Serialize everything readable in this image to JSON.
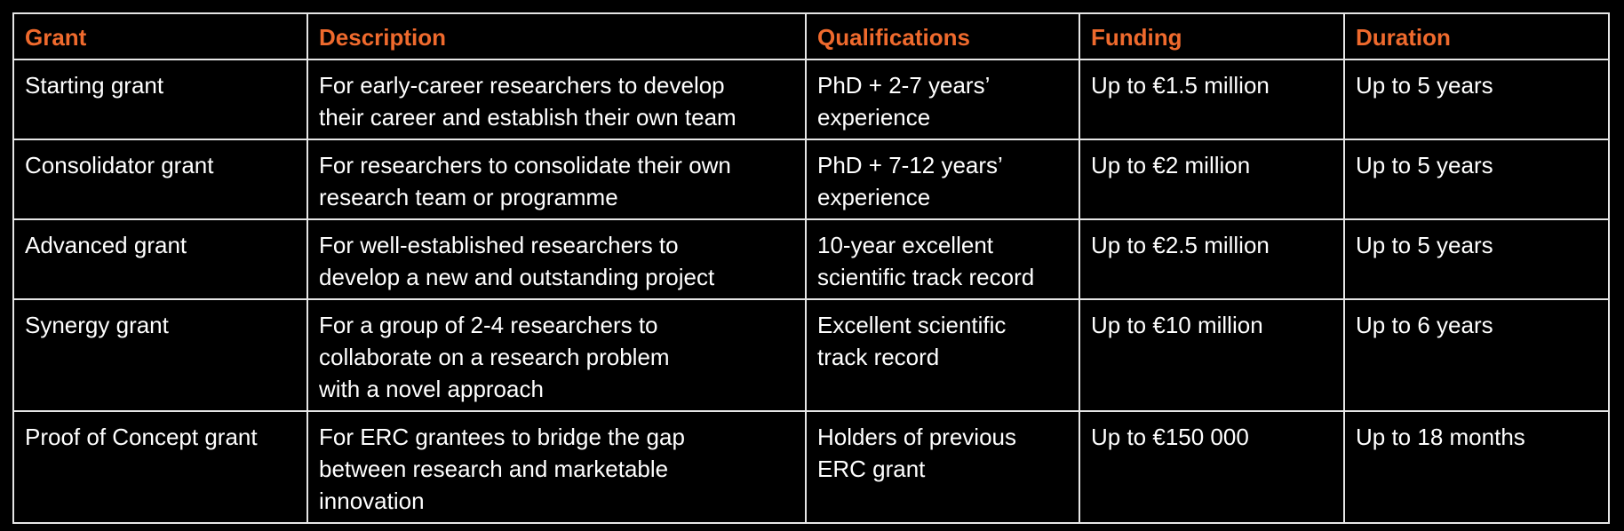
{
  "columns": [
    "Grant",
    "Description",
    "Qualifications",
    "Funding",
    "Duration"
  ],
  "colors": {
    "background": "#000000",
    "header_text": "#ef6a2d",
    "body_text": "#ffffff",
    "border": "#e6e6e6"
  },
  "rows": [
    {
      "grant": "Starting grant",
      "description": "For early-career researchers to develop\ntheir career and establish their own team",
      "qualifications": "PhD + 2-7 years’\nexperience",
      "funding": "Up to €1.5 million",
      "duration": "Up to 5 years"
    },
    {
      "grant": "Consolidator grant",
      "description": "For researchers to consolidate their own\nresearch team or programme",
      "qualifications": "PhD + 7-12 years’\nexperience",
      "funding": "Up to €2 million",
      "duration": "Up to 5 years"
    },
    {
      "grant": "Advanced grant",
      "description": "For well-established researchers to\ndevelop a new and outstanding project",
      "qualifications": "10-year excellent\nscientific track record",
      "funding": "Up to €2.5 million",
      "duration": "Up to 5 years"
    },
    {
      "grant": "Synergy grant",
      "description": "For a group of 2-4 researchers to\ncollaborate on a research problem\nwith a novel approach",
      "qualifications": "Excellent scientific\ntrack record",
      "funding": "Up to €10 million",
      "duration": "Up to 6 years"
    },
    {
      "grant": "Proof of Concept grant",
      "description": "For ERC grantees to bridge the gap\nbetween research and marketable\ninnovation",
      "qualifications": "Holders of previous\nERC grant",
      "funding": "Up to €150 000",
      "duration": "Up to 18 months"
    }
  ]
}
